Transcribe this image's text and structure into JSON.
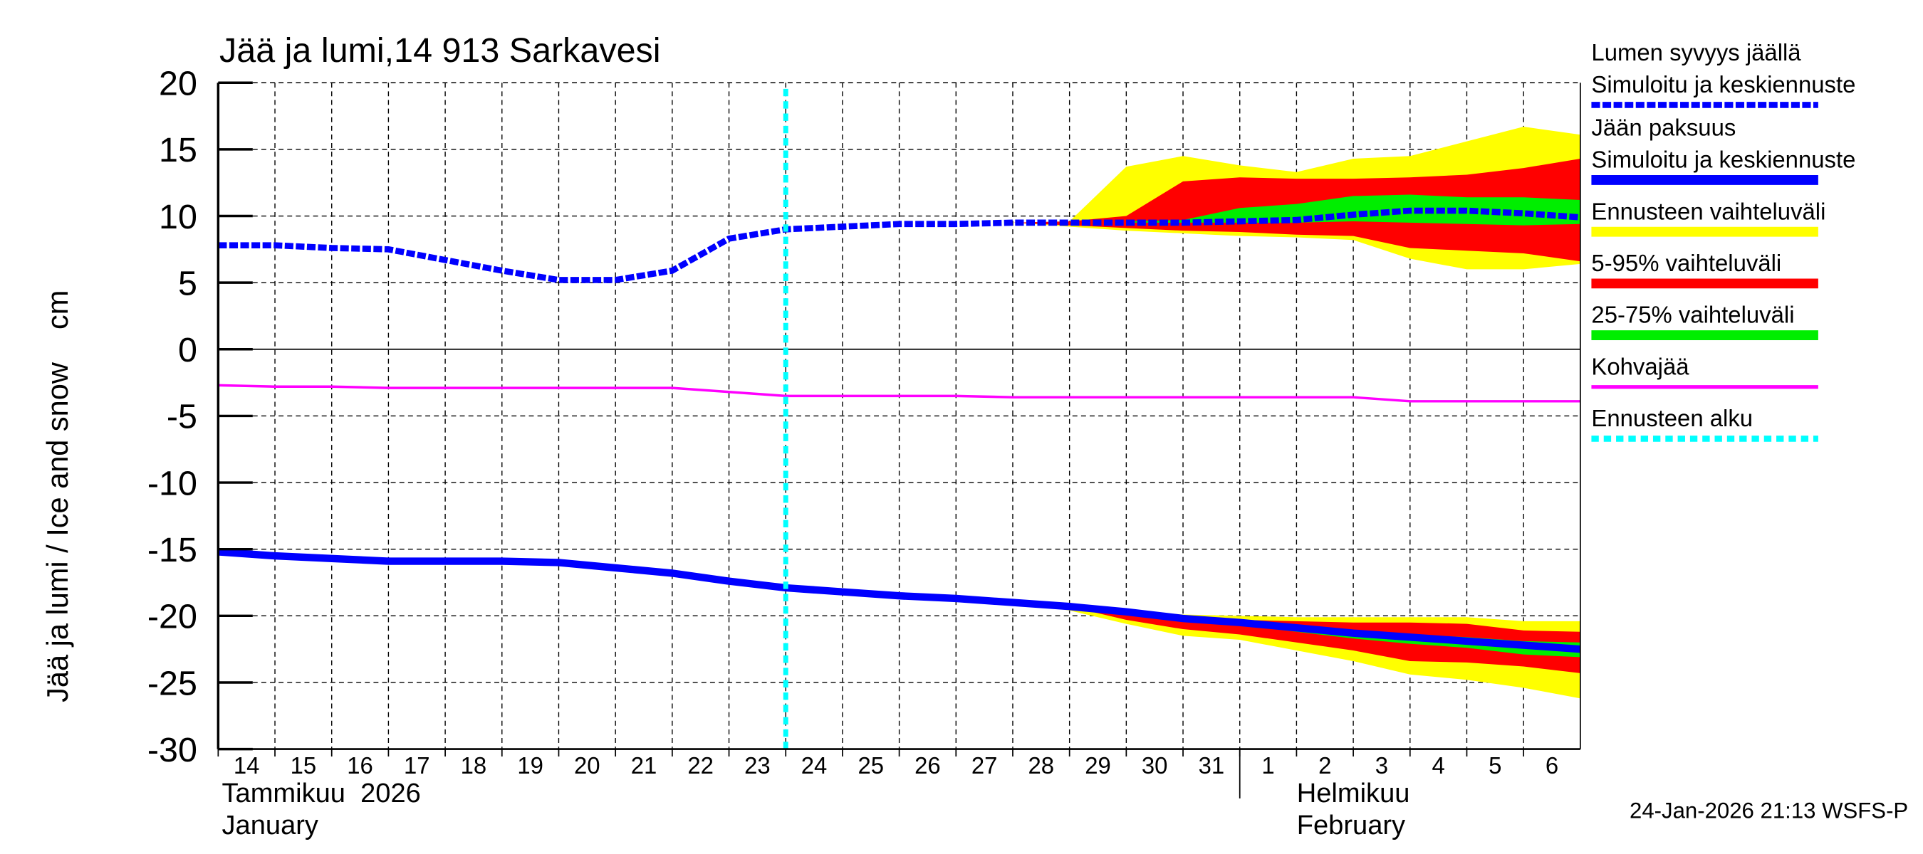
{
  "chart_data": {
    "type": "area",
    "title": "Jää ja lumi,14 913 Sarkavesi",
    "ylabel": "Jää ja lumi / Ice and snow    cm",
    "ylim": [
      -30,
      20
    ],
    "yticks": [
      20,
      15,
      10,
      5,
      0,
      -5,
      -10,
      -15,
      -20,
      -25,
      -30
    ],
    "xlim": [
      "2026-01-14",
      "2026-02-07"
    ],
    "grid": true,
    "legend_placement": "right",
    "xtick_labels": [
      "14",
      "15",
      "16",
      "17",
      "18",
      "19",
      "20",
      "21",
      "22",
      "23",
      "24",
      "25",
      "26",
      "27",
      "28",
      "29",
      "30",
      "31",
      "1",
      "2",
      "3",
      "4",
      "5",
      "6"
    ],
    "month_labels": {
      "january_fi": "Tammikuu  2026",
      "january_en": "January",
      "february_fi": "Helmikuu",
      "february_en": "February"
    },
    "x": [
      "2026-01-14",
      "2026-01-15",
      "2026-01-16",
      "2026-01-17",
      "2026-01-18",
      "2026-01-19",
      "2026-01-20",
      "2026-01-21",
      "2026-01-22",
      "2026-01-23",
      "2026-01-24",
      "2026-01-25",
      "2026-01-26",
      "2026-01-27",
      "2026-01-28",
      "2026-01-29",
      "2026-01-30",
      "2026-01-31",
      "2026-02-01",
      "2026-02-02",
      "2026-02-03",
      "2026-02-04",
      "2026-02-05",
      "2026-02-06",
      "2026-02-07"
    ],
    "forecast_start": "2026-01-24",
    "bands": [
      {
        "group": "snow",
        "kind": "ennuste",
        "color": "#ffff00",
        "upper": [
          null,
          null,
          null,
          null,
          null,
          null,
          null,
          null,
          null,
          null,
          null,
          null,
          null,
          null,
          9.5,
          9.6,
          13.7,
          14.5,
          13.8,
          13.3,
          14.3,
          14.5,
          15.6,
          16.7,
          16.1
        ],
        "lower": [
          null,
          null,
          null,
          null,
          null,
          null,
          null,
          null,
          null,
          null,
          null,
          null,
          null,
          null,
          9.5,
          9.2,
          8.9,
          8.7,
          8.5,
          8.4,
          8.2,
          6.8,
          6.0,
          6.0,
          6.4
        ]
      },
      {
        "group": "snow",
        "kind": "5-95",
        "color": "#ff0000",
        "upper": [
          null,
          null,
          null,
          null,
          null,
          null,
          null,
          null,
          null,
          null,
          null,
          null,
          null,
          null,
          9.5,
          9.6,
          10.0,
          12.6,
          12.9,
          12.8,
          12.8,
          12.9,
          13.1,
          13.6,
          14.3
        ],
        "lower": [
          null,
          null,
          null,
          null,
          null,
          null,
          null,
          null,
          null,
          null,
          null,
          null,
          null,
          null,
          9.5,
          9.3,
          9.1,
          8.9,
          8.8,
          8.6,
          8.5,
          7.6,
          7.4,
          7.2,
          6.6
        ]
      },
      {
        "group": "snow",
        "kind": "25-75",
        "color": "#00ee00",
        "upper": [
          null,
          null,
          null,
          null,
          null,
          null,
          null,
          null,
          null,
          null,
          null,
          null,
          null,
          null,
          null,
          null,
          9.6,
          9.7,
          10.6,
          10.9,
          11.5,
          11.6,
          11.4,
          11.4,
          11.2
        ],
        "lower": [
          null,
          null,
          null,
          null,
          null,
          null,
          null,
          null,
          null,
          null,
          null,
          null,
          null,
          null,
          null,
          null,
          9.5,
          9.5,
          9.5,
          9.5,
          9.6,
          9.5,
          9.4,
          9.3,
          9.4
        ]
      },
      {
        "group": "ice",
        "kind": "ennuste",
        "color": "#ffff00",
        "upper": [
          null,
          null,
          null,
          null,
          null,
          null,
          null,
          null,
          null,
          null,
          null,
          null,
          null,
          null,
          -19.0,
          -19.3,
          -19.6,
          -19.9,
          -20.0,
          -20.1,
          -20.1,
          -20.1,
          -20.1,
          -20.4,
          -20.4
        ],
        "lower": [
          null,
          null,
          null,
          null,
          null,
          null,
          null,
          null,
          null,
          null,
          null,
          null,
          null,
          null,
          -19.0,
          -19.6,
          -20.6,
          -21.5,
          -21.8,
          -22.6,
          -23.4,
          -24.4,
          -24.8,
          -25.4,
          -26.2
        ]
      },
      {
        "group": "ice",
        "kind": "5-95",
        "color": "#ff0000",
        "upper": [
          null,
          null,
          null,
          null,
          null,
          null,
          null,
          null,
          null,
          null,
          null,
          null,
          null,
          null,
          null,
          -19.3,
          -19.7,
          -20.1,
          -20.3,
          -20.4,
          -20.5,
          -20.5,
          -20.6,
          -21.1,
          -21.2
        ],
        "lower": [
          null,
          null,
          null,
          null,
          null,
          null,
          null,
          null,
          null,
          null,
          null,
          null,
          null,
          null,
          null,
          -19.3,
          -20.3,
          -21.0,
          -21.4,
          -22.0,
          -22.6,
          -23.4,
          -23.5,
          -23.8,
          -24.3
        ]
      },
      {
        "group": "ice",
        "kind": "25-75",
        "color": "#00ee00",
        "upper": [
          null,
          null,
          null,
          null,
          null,
          null,
          null,
          null,
          null,
          null,
          null,
          null,
          null,
          null,
          null,
          null,
          null,
          -20.2,
          -20.5,
          -20.8,
          -21.1,
          -21.4,
          -21.6,
          -21.9,
          -22.0
        ],
        "lower": [
          null,
          null,
          null,
          null,
          null,
          null,
          null,
          null,
          null,
          null,
          null,
          null,
          null,
          null,
          null,
          null,
          null,
          -20.2,
          -20.7,
          -21.2,
          -21.7,
          -22.1,
          -22.4,
          -22.9,
          -23.1
        ]
      }
    ],
    "series": [
      {
        "name": "Lumen syvyys jäällä",
        "color": "#0000ff",
        "style": "dashed",
        "values": [
          7.8,
          7.8,
          7.6,
          7.5,
          6.7,
          5.9,
          5.2,
          5.2,
          5.9,
          8.3,
          9.0,
          9.2,
          9.4,
          9.4,
          9.5,
          9.5,
          9.5,
          9.5,
          9.6,
          9.7,
          10.1,
          10.4,
          10.4,
          10.2,
          9.9
        ]
      },
      {
        "name": "Jään paksuus",
        "color": "#0000ff",
        "style": "solid",
        "values": [
          -15.2,
          -15.5,
          -15.7,
          -15.9,
          -15.9,
          -15.9,
          -16.0,
          -16.4,
          -16.8,
          -17.4,
          -17.9,
          -18.2,
          -18.5,
          -18.7,
          -19.0,
          -19.3,
          -19.7,
          -20.2,
          -20.5,
          -20.9,
          -21.3,
          -21.6,
          -21.9,
          -22.2,
          -22.5
        ]
      },
      {
        "name": "Kohvajää",
        "color": "#ff00ff",
        "style": "solid",
        "values": [
          -2.7,
          -2.8,
          -2.8,
          -2.9,
          -2.9,
          -2.9,
          -2.9,
          -2.9,
          -2.9,
          -3.2,
          -3.5,
          -3.5,
          -3.5,
          -3.5,
          -3.6,
          -3.6,
          -3.6,
          -3.6,
          -3.6,
          -3.6,
          -3.6,
          -3.9,
          -3.9,
          -3.9,
          -3.9
        ]
      }
    ],
    "legend": [
      {
        "line1": "Lumen syvyys jäällä",
        "line2": "Simuloitu ja keskiennuste",
        "color": "#0000ff",
        "style": "dashed"
      },
      {
        "line1": "Jään paksuus",
        "line2": "Simuloitu ja keskiennuste",
        "color": "#0000ff",
        "style": "solid"
      },
      {
        "line1": "Ennusteen vaihteluväli",
        "color": "#ffff00",
        "style": "band"
      },
      {
        "line1": "5-95% vaihteluväli",
        "color": "#ff0000",
        "style": "band"
      },
      {
        "line1": "25-75% vaihteluväli",
        "color": "#00ee00",
        "style": "band"
      },
      {
        "line1": "Kohvajää",
        "color": "#ff00ff",
        "style": "thin"
      },
      {
        "line1": "Ennusteen alku",
        "color": "#00ffff",
        "style": "dotted"
      }
    ],
    "footer": "24-Jan-2026 21:13 WSFS-P"
  }
}
